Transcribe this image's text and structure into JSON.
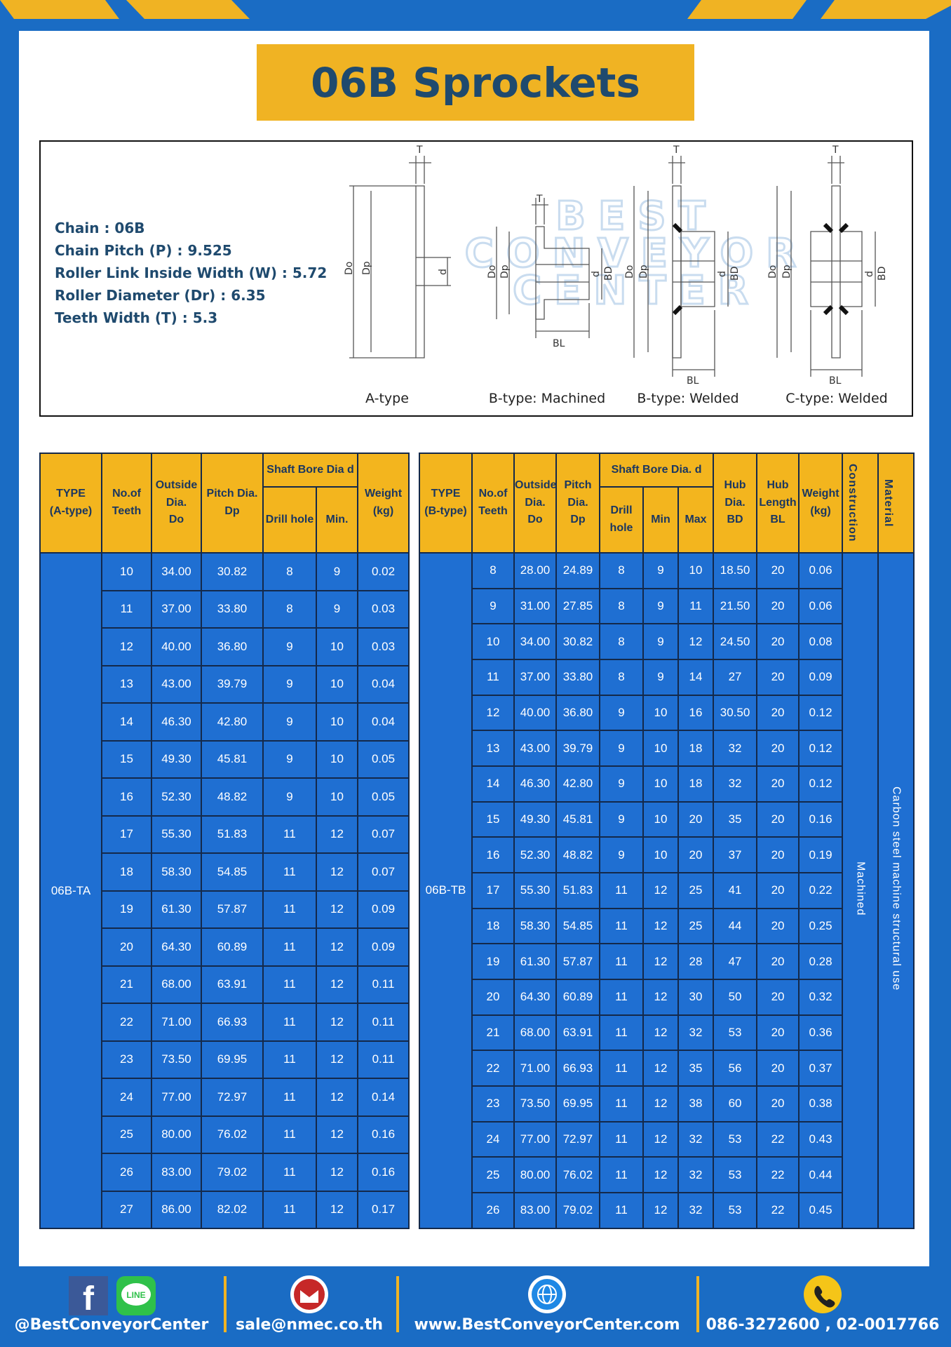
{
  "header": {
    "title": "06B Sprockets"
  },
  "specs": [
    "Chain  : 06B",
    "Chain Pitch (P)  :  9.525",
    "Roller Link Inside Width (W)  :  5.72",
    "Roller Diameter (Dr)  : 6.35",
    "Teeth Width (T)  :  5.3"
  ],
  "diagram": {
    "watermark": [
      "BEST",
      "CONVEYOR",
      "CENTER"
    ],
    "dims": {
      "T": "T",
      "Do": "Do",
      "Dp": "Dp",
      "d": "d",
      "BD": "BD",
      "BL": "BL"
    },
    "types": [
      "A-type",
      "B-type: Machined",
      "B-type: Welded",
      "C-type: Welded"
    ]
  },
  "table_a": {
    "type_label": [
      "TYPE",
      "(A-type)"
    ],
    "columns_before": [
      [
        "No.of",
        "Teeth"
      ],
      [
        "Outside",
        "Dia.",
        "Do"
      ],
      [
        "Pitch Dia.",
        "Dp"
      ]
    ],
    "bore_group": "Shaft Bore Dia d",
    "bore_columns": [
      "Drill hole",
      "Min."
    ],
    "columns_after": [
      [
        "Weight",
        "(kg)"
      ]
    ],
    "type": "06B-TA",
    "rows": [
      [
        "10",
        "34.00",
        "30.82",
        "8",
        "9",
        "0.02"
      ],
      [
        "11",
        "37.00",
        "33.80",
        "8",
        "9",
        "0.03"
      ],
      [
        "12",
        "40.00",
        "36.80",
        "9",
        "10",
        "0.03"
      ],
      [
        "13",
        "43.00",
        "39.79",
        "9",
        "10",
        "0.04"
      ],
      [
        "14",
        "46.30",
        "42.80",
        "9",
        "10",
        "0.04"
      ],
      [
        "15",
        "49.30",
        "45.81",
        "9",
        "10",
        "0.05"
      ],
      [
        "16",
        "52.30",
        "48.82",
        "9",
        "10",
        "0.05"
      ],
      [
        "17",
        "55.30",
        "51.83",
        "11",
        "12",
        "0.07"
      ],
      [
        "18",
        "58.30",
        "54.85",
        "11",
        "12",
        "0.07"
      ],
      [
        "19",
        "61.30",
        "57.87",
        "11",
        "12",
        "0.09"
      ],
      [
        "20",
        "64.30",
        "60.89",
        "11",
        "12",
        "0.09"
      ],
      [
        "21",
        "68.00",
        "63.91",
        "11",
        "12",
        "0.11"
      ],
      [
        "22",
        "71.00",
        "66.93",
        "11",
        "12",
        "0.11"
      ],
      [
        "23",
        "73.50",
        "69.95",
        "11",
        "12",
        "0.11"
      ],
      [
        "24",
        "77.00",
        "72.97",
        "11",
        "12",
        "0.14"
      ],
      [
        "25",
        "80.00",
        "76.02",
        "11",
        "12",
        "0.16"
      ],
      [
        "26",
        "83.00",
        "79.02",
        "11",
        "12",
        "0.16"
      ],
      [
        "27",
        "86.00",
        "82.02",
        "11",
        "12",
        "0.17"
      ]
    ]
  },
  "table_b": {
    "type_label": [
      "TYPE",
      "(B-type)"
    ],
    "columns_before": [
      [
        "No.of",
        "Teeth"
      ],
      [
        "Outside",
        "Dia.",
        "Do"
      ],
      [
        "Pitch",
        "Dia.",
        "Dp"
      ]
    ],
    "bore_group": "Shaft Bore Dia.  d",
    "bore_columns": [
      "Drill hole",
      "Min",
      "Max"
    ],
    "columns_after": [
      [
        "Hub",
        "Dia.",
        "BD"
      ],
      [
        "Hub",
        "Length",
        "BL"
      ],
      [
        "Weight",
        "(kg)"
      ]
    ],
    "construction_label": "Construction",
    "material_label": "Material",
    "type": "06B-TB",
    "construction": "Machined",
    "material": "Carbon steel machine structural use",
    "rows": [
      [
        "8",
        "28.00",
        "24.89",
        "8",
        "9",
        "10",
        "18.50",
        "20",
        "0.06"
      ],
      [
        "9",
        "31.00",
        "27.85",
        "8",
        "9",
        "11",
        "21.50",
        "20",
        "0.06"
      ],
      [
        "10",
        "34.00",
        "30.82",
        "8",
        "9",
        "12",
        "24.50",
        "20",
        "0.08"
      ],
      [
        "11",
        "37.00",
        "33.80",
        "8",
        "9",
        "14",
        "27",
        "20",
        "0.09"
      ],
      [
        "12",
        "40.00",
        "36.80",
        "9",
        "10",
        "16",
        "30.50",
        "20",
        "0.12"
      ],
      [
        "13",
        "43.00",
        "39.79",
        "9",
        "10",
        "18",
        "32",
        "20",
        "0.12"
      ],
      [
        "14",
        "46.30",
        "42.80",
        "9",
        "10",
        "18",
        "32",
        "20",
        "0.12"
      ],
      [
        "15",
        "49.30",
        "45.81",
        "9",
        "10",
        "20",
        "35",
        "20",
        "0.16"
      ],
      [
        "16",
        "52.30",
        "48.82",
        "9",
        "10",
        "20",
        "37",
        "20",
        "0.19"
      ],
      [
        "17",
        "55.30",
        "51.83",
        "11",
        "12",
        "25",
        "41",
        "20",
        "0.22"
      ],
      [
        "18",
        "58.30",
        "54.85",
        "11",
        "12",
        "25",
        "44",
        "20",
        "0.25"
      ],
      [
        "19",
        "61.30",
        "57.87",
        "11",
        "12",
        "28",
        "47",
        "20",
        "0.28"
      ],
      [
        "20",
        "64.30",
        "60.89",
        "11",
        "12",
        "30",
        "50",
        "20",
        "0.32"
      ],
      [
        "21",
        "68.00",
        "63.91",
        "11",
        "12",
        "32",
        "53",
        "20",
        "0.36"
      ],
      [
        "22",
        "71.00",
        "66.93",
        "11",
        "12",
        "35",
        "56",
        "20",
        "0.37"
      ],
      [
        "23",
        "73.50",
        "69.95",
        "11",
        "12",
        "38",
        "60",
        "20",
        "0.38"
      ],
      [
        "24",
        "77.00",
        "72.97",
        "11",
        "12",
        "32",
        "53",
        "22",
        "0.43"
      ],
      [
        "25",
        "80.00",
        "76.02",
        "11",
        "12",
        "32",
        "53",
        "22",
        "0.44"
      ],
      [
        "26",
        "83.00",
        "79.02",
        "11",
        "12",
        "32",
        "53",
        "22",
        "0.45"
      ]
    ]
  },
  "footer": {
    "line_icon": "LINE",
    "social": "@BestConveyorCenter",
    "email": "sale@nmec.co.th",
    "website": "www.BestConveyorCenter.com",
    "phone": "086-3272600 , 02-0017766"
  }
}
